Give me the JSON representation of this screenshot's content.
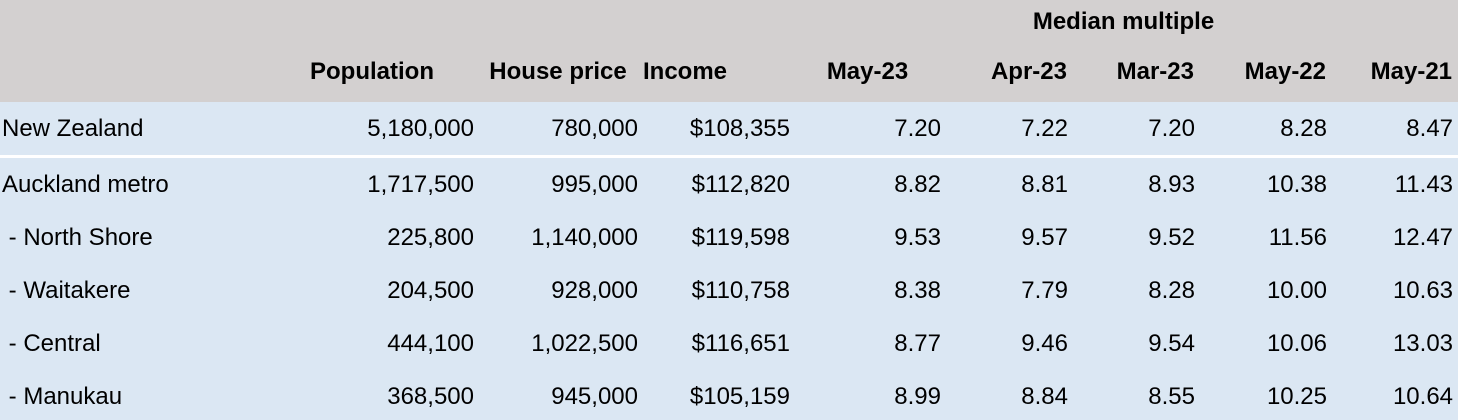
{
  "table": {
    "group_header": "Median multiple",
    "columns": [
      "",
      "Population",
      "House price",
      "Income",
      "May-23",
      "Apr-23",
      "Mar-23",
      "May-22",
      "May-21"
    ],
    "rows": [
      [
        "New Zealand",
        "5,180,000",
        "780,000",
        "$108,355",
        "7.20",
        "7.22",
        "7.20",
        "8.28",
        "8.47"
      ],
      [
        "Auckland metro",
        "1,717,500",
        "995,000",
        "$112,820",
        "8.82",
        "8.81",
        "8.93",
        "10.38",
        "11.43"
      ],
      [
        " - North Shore",
        "225,800",
        "1,140,000",
        "$119,598",
        "9.53",
        "9.57",
        "9.52",
        "11.56",
        "12.47"
      ],
      [
        " - Waitakere",
        "204,500",
        "928,000",
        "$110,758",
        "8.38",
        "7.79",
        "8.28",
        "10.00",
        "10.63"
      ],
      [
        " - Central",
        "444,100",
        "1,022,500",
        "$116,651",
        "8.77",
        "9.46",
        "9.54",
        "10.06",
        "13.03"
      ],
      [
        " - Manukau",
        "368,500",
        "945,000",
        "$105,159",
        "8.99",
        "8.84",
        "8.55",
        "10.25",
        "10.64"
      ]
    ]
  }
}
